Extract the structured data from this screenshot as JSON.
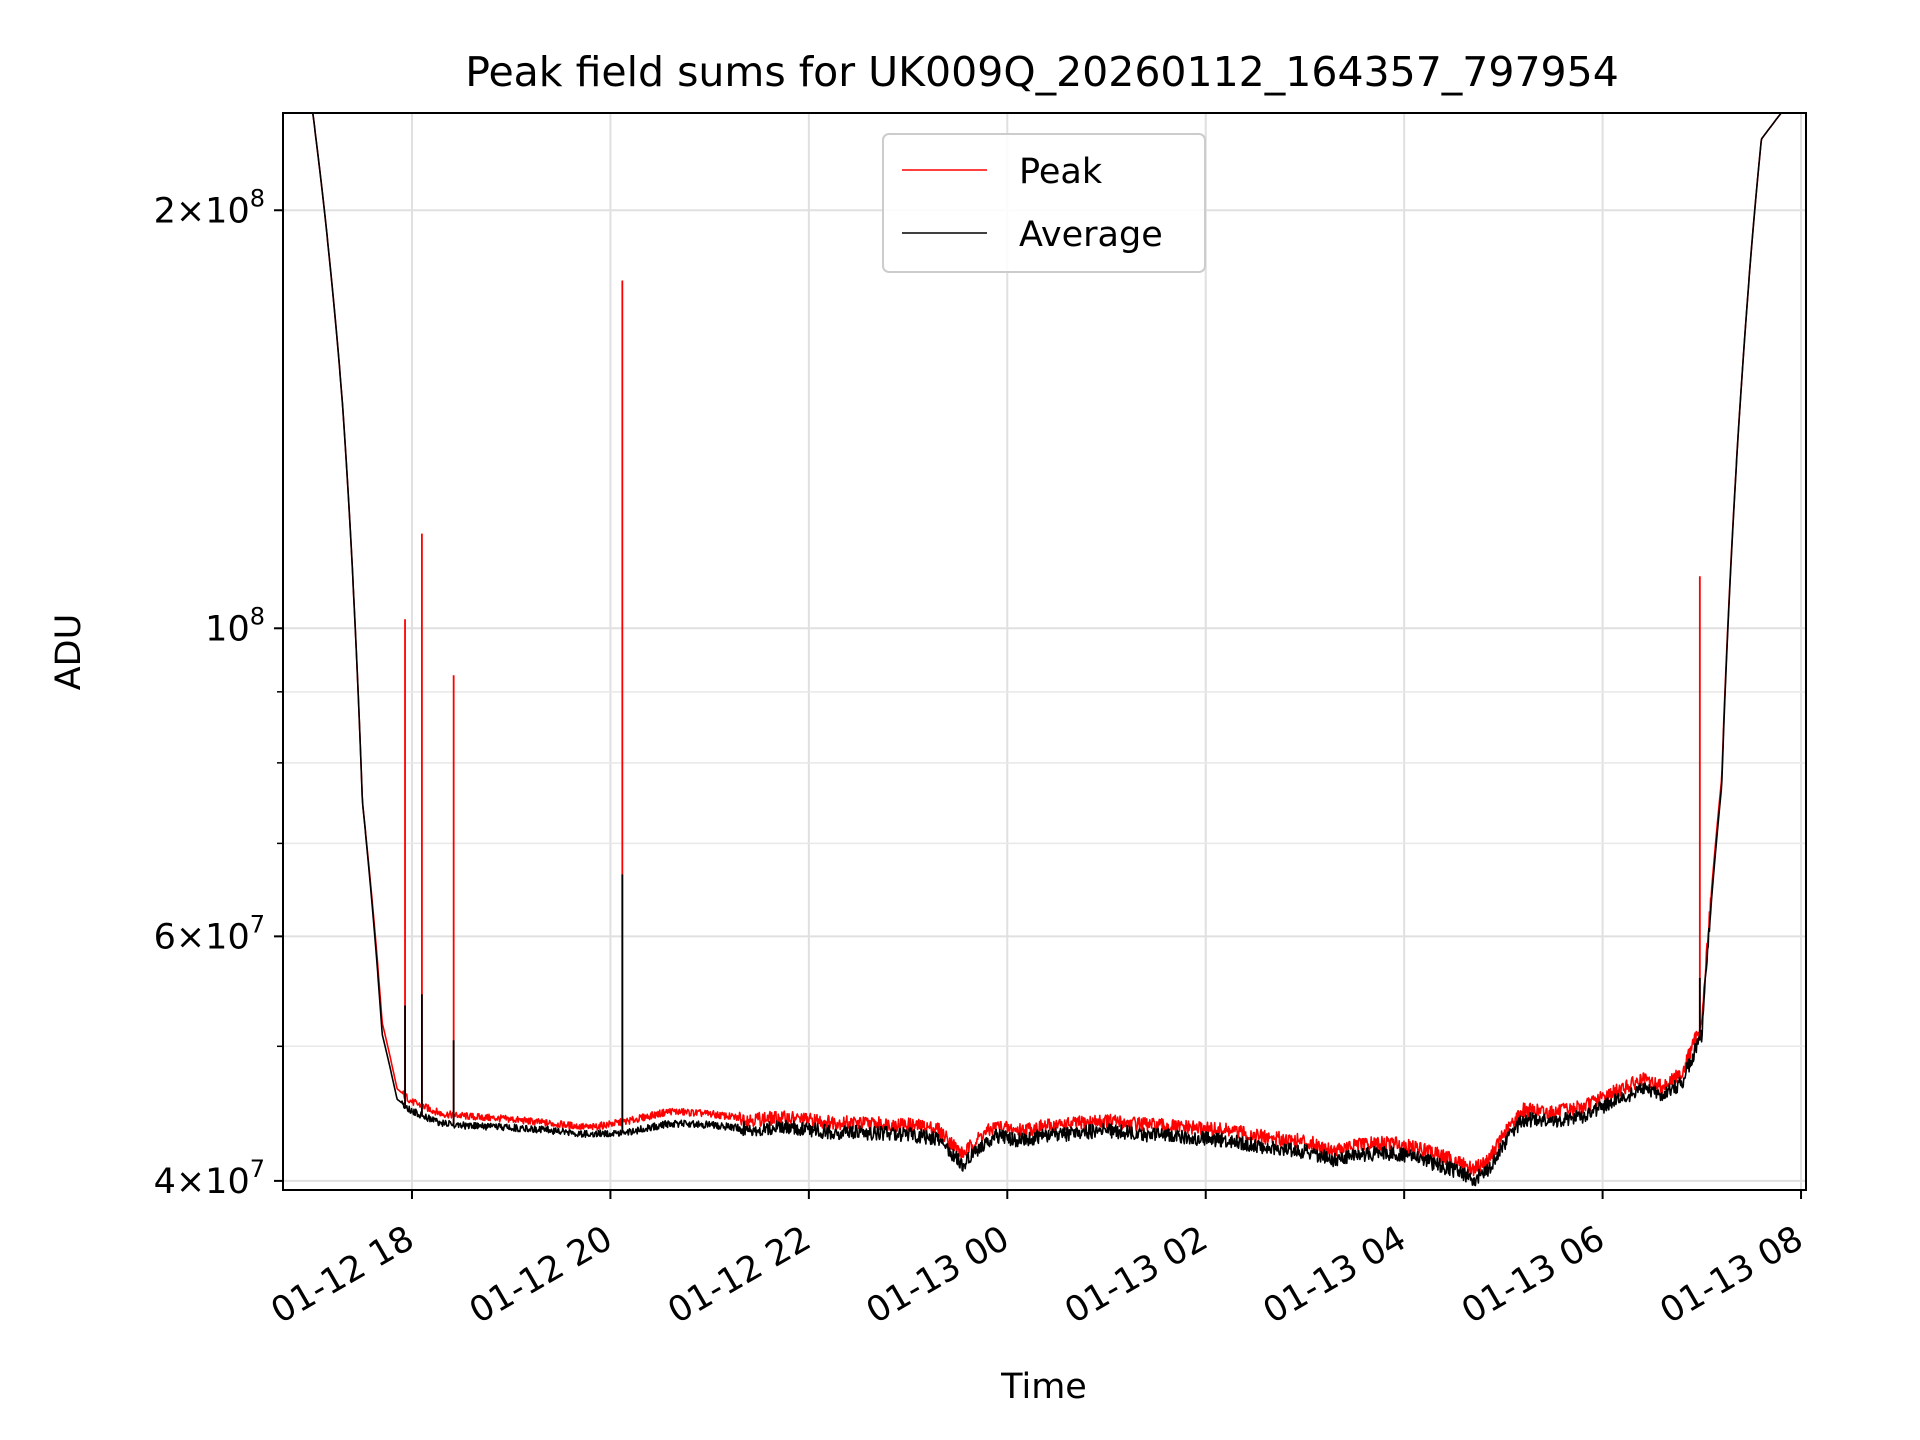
{
  "chart_data": {
    "type": "line",
    "title": "Peak field sums for UK009Q_20260112_164357_797954",
    "xlabel": "Time",
    "ylabel": "ADU",
    "yscale": "log",
    "ylim": [
      39400000,
      235000000
    ],
    "xlim_hours": [
      16.7,
      32.05
    ],
    "grid": true,
    "legend_placement": "upper center",
    "x_ticks": [
      {
        "label": "01-12 18",
        "hour": 18
      },
      {
        "label": "01-12 20",
        "hour": 20
      },
      {
        "label": "01-12 22",
        "hour": 22
      },
      {
        "label": "01-13 00",
        "hour": 24
      },
      {
        "label": "01-13 02",
        "hour": 26
      },
      {
        "label": "01-13 04",
        "hour": 28
      },
      {
        "label": "01-13 06",
        "hour": 30
      },
      {
        "label": "01-13 08",
        "hour": 32
      }
    ],
    "y_ticks": [
      {
        "mant": "4",
        "exp": "7",
        "value": 40000000
      },
      {
        "mant": "6",
        "exp": "7",
        "value": 60000000
      },
      {
        "mant": "10",
        "exp": "8",
        "value": 100000000
      },
      {
        "mant": "2",
        "exp": "8",
        "value": 200000000
      }
    ],
    "y_minor": [
      50000000,
      70000000,
      80000000,
      90000000
    ],
    "series": [
      {
        "name": "Peak",
        "color": "#ff0000",
        "x": [
          16.7,
          17.0,
          17.3,
          17.5,
          17.7,
          17.85,
          18.0,
          18.3,
          18.6,
          19.0,
          19.4,
          19.8,
          20.2,
          20.6,
          21.0,
          21.4,
          21.8,
          22.2,
          22.6,
          23.0,
          23.3,
          23.55,
          23.75,
          23.9,
          24.1,
          24.4,
          24.7,
          25.0,
          25.4,
          25.8,
          26.2,
          26.6,
          27.0,
          27.3,
          27.6,
          27.9,
          28.2,
          28.5,
          28.7,
          28.85,
          29.0,
          29.2,
          29.5,
          29.8,
          30.1,
          30.4,
          30.6,
          30.8,
          31.0,
          31.2,
          31.4,
          31.6,
          31.8,
          32.05
        ],
        "y": [
          235000000,
          235000000,
          145000000,
          75000000,
          52000000,
          46600000,
          45600000,
          44700000,
          44500000,
          44300000,
          44000000,
          43700000,
          44200000,
          44900000,
          44700000,
          44300000,
          44400000,
          44100000,
          44000000,
          43900000,
          43600000,
          41800000,
          43200000,
          43800000,
          43500000,
          43800000,
          44000000,
          44200000,
          43900000,
          43700000,
          43500000,
          43000000,
          42700000,
          42100000,
          42500000,
          42600000,
          42100000,
          41400000,
          40800000,
          41400000,
          43200000,
          45000000,
          44800000,
          45200000,
          46300000,
          47300000,
          46800000,
          47800000,
          52000000,
          78000000,
          150000000,
          225000000,
          235000000,
          235000000
        ],
        "spikes": [
          {
            "x": 17.93,
            "peak": 101500000,
            "avg": 53500000
          },
          {
            "x": 18.1,
            "peak": 117000000,
            "avg": 54500000
          },
          {
            "x": 18.42,
            "peak": 92500000,
            "avg": 50500000
          },
          {
            "x": 20.12,
            "peak": 178000000,
            "avg": 66500000
          },
          {
            "x": 30.98,
            "peak": 109000000,
            "avg": 56000000
          }
        ]
      },
      {
        "name": "Average",
        "color": "#000000",
        "x": [
          16.7,
          17.0,
          17.3,
          17.5,
          17.7,
          17.85,
          18.0,
          18.3,
          18.6,
          19.0,
          19.4,
          19.8,
          20.2,
          20.6,
          21.0,
          21.4,
          21.8,
          22.2,
          22.6,
          23.0,
          23.3,
          23.55,
          23.75,
          23.9,
          24.1,
          24.4,
          24.7,
          25.0,
          25.4,
          25.8,
          26.2,
          26.6,
          27.0,
          27.3,
          27.6,
          27.9,
          28.2,
          28.5,
          28.7,
          28.85,
          29.0,
          29.2,
          29.5,
          29.8,
          30.1,
          30.4,
          30.6,
          30.8,
          31.0,
          31.2,
          31.4,
          31.6,
          31.8,
          32.05
        ],
        "y": [
          235000000,
          235000000,
          145000000,
          75000000,
          51000000,
          45800000,
          44900000,
          44000000,
          43800000,
          43700000,
          43500000,
          43200000,
          43400000,
          44000000,
          43900000,
          43600000,
          43700000,
          43400000,
          43300000,
          43200000,
          42900000,
          41100000,
          42500000,
          43100000,
          42800000,
          43100000,
          43300000,
          43500000,
          43200000,
          43000000,
          42800000,
          42300000,
          42000000,
          41400000,
          41800000,
          41900000,
          41400000,
          40700000,
          40100000,
          40700000,
          42500000,
          44300000,
          44100000,
          44500000,
          45600000,
          46600000,
          46100000,
          47100000,
          51000000,
          77000000,
          150000000,
          225000000,
          235000000,
          235000000
        ]
      }
    ]
  }
}
